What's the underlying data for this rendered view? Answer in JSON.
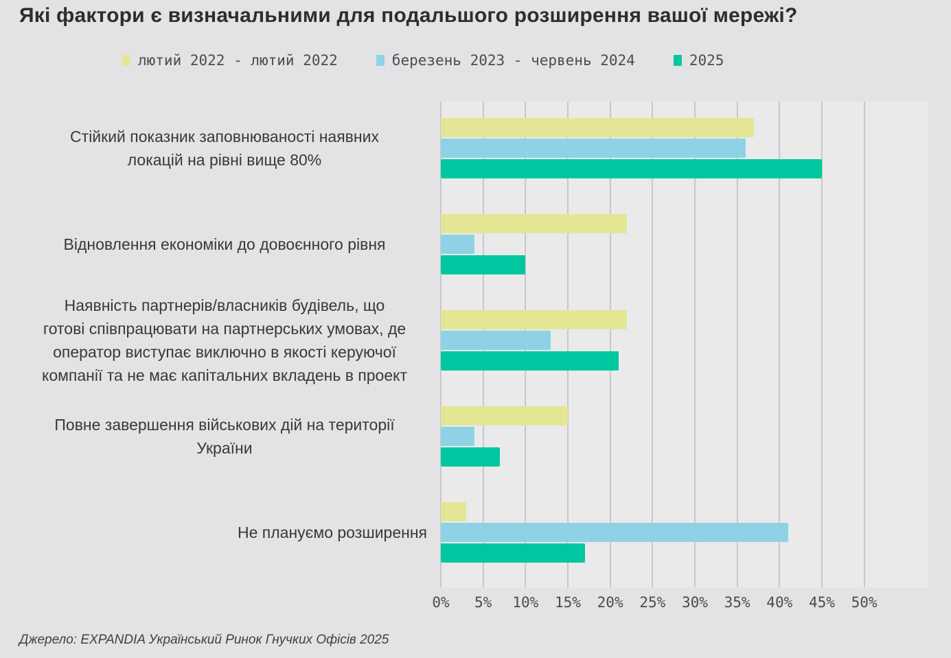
{
  "page": {
    "source": "Джерело: EXPANDIA Український Ринок Гнучких Офісів 2025"
  },
  "colors": {
    "background": "#e3e3e5",
    "gridline": "#c8c8cc",
    "series_feb2022": "#e3e795",
    "series_mar2023_jun2024": "#8fd2e6",
    "series_2025": "#00c7a0"
  },
  "chart_data": {
    "type": "bar",
    "orientation": "horizontal",
    "title": "Які фактори є визначальними для подальшого розширення вашої мережі?",
    "categories": [
      "Стійкий показник заповнюваності наявних\nлокацій на рівні вище 80%",
      "Відновлення економіки до довоєнного рівня",
      "Наявність партнерів/власників будівель, що\nготові співпрацювати на партнерських умовах, де\nоператор виступає виключно в якості керуючої\nкомпанії та не має капітальних вкладень в проект",
      "Повне завершення військових дій на території\nУкраїни",
      "Не плануємо розширення"
    ],
    "series": [
      {
        "name": "лютий 2022 - лютий 2022",
        "color": "#e3e795",
        "values": [
          37,
          22,
          22,
          15,
          3
        ]
      },
      {
        "name": "березень 2023 - червень 2024",
        "color": "#8fd2e6",
        "values": [
          36,
          4,
          13,
          4,
          41
        ]
      },
      {
        "name": "2025",
        "color": "#00c7a0",
        "values": [
          45,
          10,
          21,
          7,
          17
        ]
      }
    ],
    "x_ticks": [
      "0%",
      "5%",
      "10%",
      "15%",
      "20%",
      "25%",
      "30%",
      "35%",
      "40%",
      "45%",
      "50%"
    ],
    "xlim": [
      0,
      50
    ],
    "xlabel": "",
    "ylabel": "",
    "grid": true,
    "legend_position": "top"
  }
}
